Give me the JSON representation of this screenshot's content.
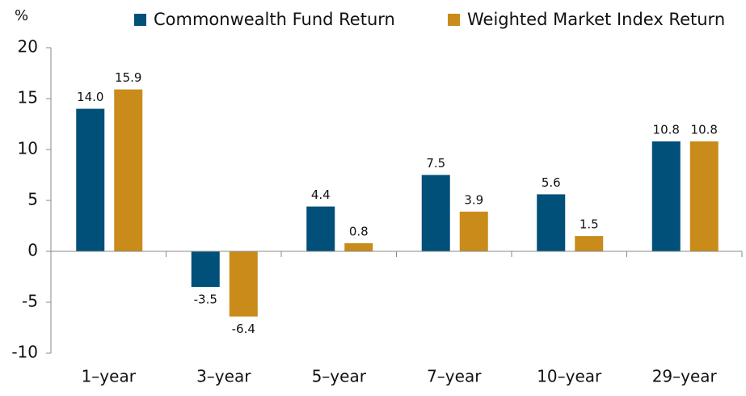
{
  "chart_data": {
    "type": "bar",
    "y_label": "%",
    "categories": [
      "1–year",
      "3–year",
      "5–year",
      "7–year",
      "10–year",
      "29–year"
    ],
    "series": [
      {
        "name": "Commonwealth Fund Return",
        "color": "#00507a",
        "values": [
          14.0,
          -3.5,
          4.4,
          7.5,
          5.6,
          10.8
        ],
        "value_labels": [
          "14.0",
          "-3.5",
          "4.4",
          "7.5",
          "5.6",
          "10.8"
        ]
      },
      {
        "name": "Weighted Market Index Return",
        "color": "#c98b1a",
        "values": [
          15.9,
          -6.4,
          0.8,
          3.9,
          1.5,
          10.8
        ],
        "value_labels": [
          "15.9",
          "-6.4",
          "0.8",
          "3.9",
          "1.5",
          "10.8"
        ]
      }
    ],
    "ylim": [
      -10,
      20
    ],
    "yticks": [
      -10,
      -5,
      0,
      5,
      10,
      15,
      20
    ],
    "legend": "top"
  }
}
